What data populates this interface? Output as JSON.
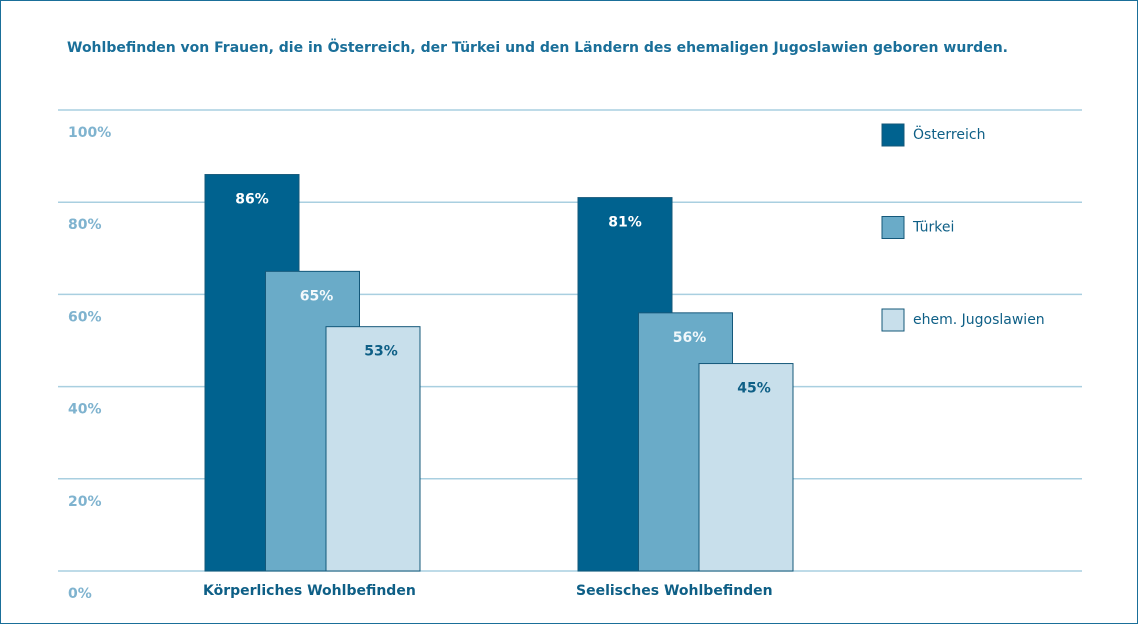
{
  "chart_data": {
    "type": "bar",
    "title": "Wohlbefinden von Frauen, die in Österreich, der Türkei und den Ländern des ehemaligen Jugoslawien geboren wurden.",
    "categories": [
      "Körperliches Wohlbefinden",
      "Seelisches Wohlbefinden"
    ],
    "series": [
      {
        "name": "Österreich",
        "color": "#00628f",
        "values": [
          86,
          81
        ],
        "value_labels": [
          "86%",
          "81%"
        ]
      },
      {
        "name": "Türkei",
        "color": "#6aabc8",
        "values": [
          65,
          56
        ],
        "value_labels": [
          "65%",
          "56%"
        ]
      },
      {
        "name": "ehem. Jugoslawien",
        "color": "#c8dfeb",
        "values": [
          53,
          45
        ],
        "value_labels": [
          "53%",
          "45%"
        ]
      }
    ],
    "ylim": [
      0,
      100
    ],
    "yticks": [
      {
        "value": 0,
        "label": "0%"
      },
      {
        "value": 20,
        "label": "20%"
      },
      {
        "value": 40,
        "label": "40%"
      },
      {
        "value": 60,
        "label": "60%"
      },
      {
        "value": 80,
        "label": "80%"
      },
      {
        "value": 100,
        "label": "100%"
      }
    ],
    "grid": true
  }
}
